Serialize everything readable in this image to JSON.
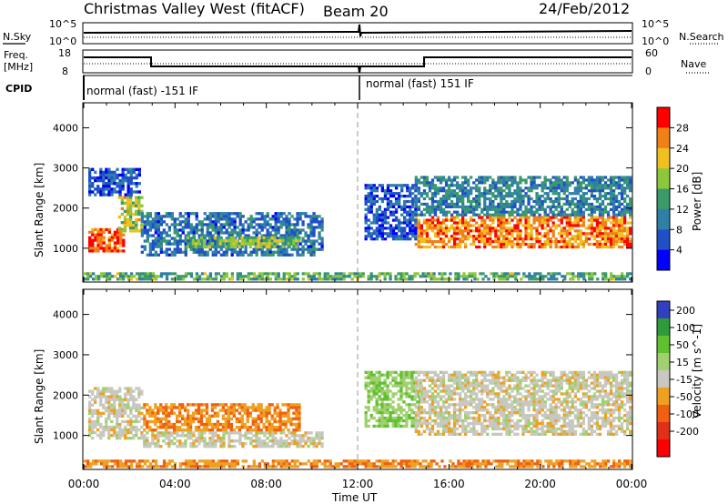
{
  "header": {
    "title": "Christmas Valley West (fitACF)",
    "beam": "Beam 20",
    "date": "24/Feb/2012"
  },
  "strips": {
    "nsky_label": "N.Sky",
    "nsky_ticks": [
      "10^5",
      "10^0"
    ],
    "nsearch_label": "N.Search",
    "nsearch_ticks": [
      "10^5",
      "10^0"
    ],
    "freq_label_1": "Freq.",
    "freq_label_2": "[MHz]",
    "freq_ticks": [
      "18",
      "8"
    ],
    "nave_label": "Nave",
    "nave_ticks": [
      "60",
      "0"
    ],
    "cpid_label": "CPID",
    "cpid_segments": [
      {
        "text": "normal (fast) -151 IF",
        "start_hour": 0,
        "end_hour": 12
      },
      {
        "text": "normal (fast) 151 IF",
        "start_hour": 12,
        "end_hour": 24
      }
    ]
  },
  "axes": {
    "xlabel": "Time UT",
    "x_ticks": [
      "00:00",
      "04:00",
      "08:00",
      "12:00",
      "16:00",
      "20:00",
      "00:00"
    ],
    "x_range_hours": [
      0,
      24
    ],
    "ylabel": "Slant Range [km]",
    "y_ticks": [
      1000,
      2000,
      3000,
      4000
    ],
    "y_range_km": [
      180,
      4600
    ]
  },
  "power_colorbar": {
    "label": "Power [dB]",
    "ticks": [
      "28",
      "24",
      "20",
      "16",
      "12",
      "8",
      "4"
    ],
    "colors": [
      "#0000ff",
      "#2050c8",
      "#2f7fa8",
      "#3a9a6a",
      "#8cc83c",
      "#f0c020",
      "#f08018",
      "#ff0000"
    ]
  },
  "velocity_colorbar": {
    "label": "Velocity [m s^-1]",
    "ticks": [
      "200",
      "100",
      "50",
      "15",
      "-15",
      "-50",
      "-100",
      "-200"
    ],
    "colors": [
      "#3040c0",
      "#2e9b3a",
      "#60c030",
      "#a0d070",
      "#c8c8c0",
      "#f0a020",
      "#f06010",
      "#e03018",
      "#ff0000"
    ]
  },
  "chart_data": [
    {
      "type": "heatmap",
      "title": "Power [dB]",
      "xlabel": "Time UT",
      "ylabel": "Slant Range [km]",
      "xlim_hours": [
        0,
        24
      ],
      "ylim_km": [
        180,
        4600
      ],
      "zlim": [
        0,
        30
      ],
      "echo_regions": [
        {
          "t0": 0.2,
          "t1": 1.8,
          "r0": 900,
          "r1": 1500,
          "value": 26
        },
        {
          "t0": 1.5,
          "t1": 2.6,
          "r0": 1400,
          "r1": 2300,
          "value": 18
        },
        {
          "t0": 2.5,
          "t1": 10.5,
          "r0": 800,
          "r1": 1900,
          "value": 8
        },
        {
          "t0": 4.5,
          "t1": 9.5,
          "r0": 1000,
          "r1": 1300,
          "value": 16
        },
        {
          "t0": 0.2,
          "t1": 2.5,
          "r0": 2300,
          "r1": 3000,
          "value": 6
        },
        {
          "t0": 14.5,
          "t1": 24,
          "r0": 1000,
          "r1": 1800,
          "value": 24
        },
        {
          "t0": 14.5,
          "t1": 24,
          "r0": 1800,
          "r1": 2800,
          "value": 10
        },
        {
          "t0": 12.3,
          "t1": 14.6,
          "r0": 1200,
          "r1": 2600,
          "value": 6
        },
        {
          "t0": 0,
          "t1": 24,
          "r0": 200,
          "r1": 400,
          "value": 14
        }
      ]
    },
    {
      "type": "heatmap",
      "title": "Velocity [m s^-1]",
      "xlabel": "Time UT",
      "ylabel": "Slant Range [km]",
      "xlim_hours": [
        0,
        24
      ],
      "ylim_km": [
        180,
        4600
      ],
      "zlim": [
        -200,
        200
      ],
      "echo_regions": [
        {
          "t0": 0.2,
          "t1": 2.6,
          "r0": 900,
          "r1": 2200,
          "value": 0
        },
        {
          "t0": 2.6,
          "t1": 9.5,
          "r0": 1100,
          "r1": 1800,
          "value": -60
        },
        {
          "t0": 2.6,
          "t1": 10.5,
          "r0": 700,
          "r1": 1100,
          "value": 0
        },
        {
          "t0": 12.3,
          "t1": 14.8,
          "r0": 1200,
          "r1": 2600,
          "value": 60
        },
        {
          "t0": 14.5,
          "t1": 24,
          "r0": 1000,
          "r1": 2600,
          "value": 0
        },
        {
          "t0": 0,
          "t1": 24,
          "r0": 200,
          "r1": 400,
          "value": -60
        }
      ]
    }
  ]
}
